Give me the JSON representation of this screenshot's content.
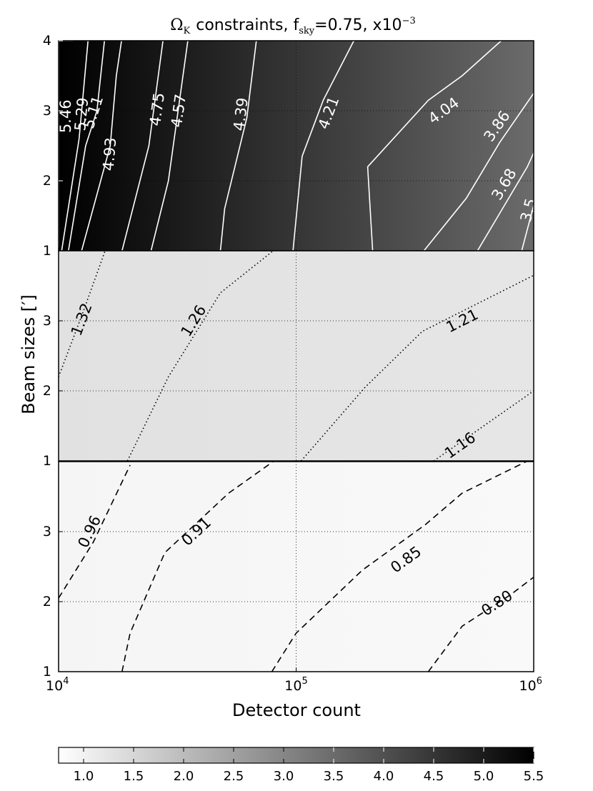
{
  "chart_data": {
    "type": "contour",
    "title": {
      "symbol": "Ω",
      "symbol_sub": "K",
      "mid": "constraints, f",
      "f_sub": "sky",
      "value": "=0.75, x10",
      "exp": "−3"
    },
    "xlabel": "Detector count",
    "ylabel": "Beam sizes [′]",
    "x_scale": "log",
    "xlim": [
      10000,
      1000000
    ],
    "x_ticks": [
      {
        "value": 10000,
        "base": "10",
        "exp": "4"
      },
      {
        "value": 100000,
        "base": "10",
        "exp": "5"
      },
      {
        "value": 1000000,
        "base": "10",
        "exp": "6"
      }
    ],
    "ylim": [
      1,
      4
    ],
    "y_ticks": [
      {
        "value": 1,
        "label": "1"
      },
      {
        "value": 2,
        "label": "2"
      },
      {
        "value": 3,
        "label": "3"
      },
      {
        "value": 4,
        "label": "4"
      }
    ],
    "grid": true,
    "panels": [
      {
        "name": "panel-1",
        "line_style": "solid",
        "line_color": "#ffffff",
        "label_color": "#ffffff",
        "show_y4": true,
        "background": {
          "left_value": 5.55,
          "right_value": 3.5
        },
        "contours": [
          {
            "label": "5.46",
            "points": [
              [
                10000,
                1.05
              ],
              [
                10000,
                4.0
              ],
              [
                11500,
                4.0
              ]
            ],
            "label_at": [
              10700,
              2.92
            ]
          },
          {
            "label": "5.29",
            "points": [
              [
                10300,
                1.0
              ],
              [
                12200,
                2.6
              ],
              [
                13300,
                4.0
              ]
            ],
            "label_at": [
              12500,
              2.95
            ]
          },
          {
            "label": "5.11",
            "points": [
              [
                11000,
                1.0
              ],
              [
                13000,
                2.5
              ],
              [
                14500,
                3.0
              ],
              [
                15600,
                4.0
              ]
            ],
            "label_at": [
              14000,
              2.98
            ]
          },
          {
            "label": "4.93",
            "points": [
              [
                12500,
                1.0
              ],
              [
                16500,
                2.5
              ],
              [
                17500,
                3.5
              ],
              [
                18400,
                4.0
              ]
            ],
            "label_at": [
              16400,
              2.38
            ]
          },
          {
            "label": "4.75",
            "points": [
              [
                18500,
                1.0
              ],
              [
                24000,
                2.5
              ],
              [
                27500,
                4.0
              ]
            ],
            "label_at": [
              26000,
              3.02
            ]
          },
          {
            "label": "4.57",
            "points": [
              [
                24500,
                1.0
              ],
              [
                29000,
                2.0
              ],
              [
                35000,
                4.0
              ]
            ],
            "label_at": [
              32000,
              3.0
            ]
          },
          {
            "label": "4.39",
            "points": [
              [
                48000,
                1.0
              ],
              [
                50000,
                1.6
              ],
              [
                62000,
                2.9
              ],
              [
                68000,
                4.0
              ]
            ],
            "label_at": [
              58500,
              2.95
            ]
          },
          {
            "label": "4.21",
            "points": [
              [
                97000,
                1.0
              ],
              [
                106000,
                2.35
              ],
              [
                130000,
                3.15
              ],
              [
                175000,
                4.0
              ]
            ],
            "label_at": [
              137000,
              2.97
            ]
          },
          {
            "label": "4.04",
            "points": [
              [
                210000,
                1.0
              ],
              [
                200000,
                2.2
              ],
              [
                360000,
                3.15
              ],
              [
                500000,
                3.5
              ],
              [
                730000,
                4.0
              ]
            ],
            "label_at": [
              418000,
              3.0
            ]
          },
          {
            "label": "3.86",
            "points": [
              [
                345000,
                1.0
              ],
              [
                520000,
                1.75
              ],
              [
                720000,
                2.55
              ],
              [
                1000000,
                3.25
              ]
            ],
            "label_at": [
              700000,
              2.78
            ]
          },
          {
            "label": "3.68",
            "points": [
              [
                580000,
                1.0
              ],
              [
                940000,
                2.2
              ],
              [
                1000000,
                2.4
              ]
            ],
            "label_at": [
              750000,
              1.95
            ]
          },
          {
            "label": "3.5",
            "points": [
              [
                890000,
                1.0
              ],
              [
                1000000,
                1.65
              ]
            ],
            "label_at": [
              950000,
              1.58
            ]
          }
        ]
      },
      {
        "name": "panel-2",
        "line_style": "dotted",
        "line_color": "#000000",
        "label_color": "#000000",
        "show_y4": false,
        "background": {
          "left_value": 1.3,
          "right_value": 1.22
        },
        "contours": [
          {
            "label": "1.32",
            "points": [
              [
                10000,
                2.2
              ],
              [
                12600,
                3.1
              ],
              [
                15700,
                4.0
              ]
            ],
            "label_at": [
              12500,
              3.02
            ]
          },
          {
            "label": "1.26",
            "points": [
              [
                19500,
                1.0
              ],
              [
                29000,
                2.2
              ],
              [
                48000,
                3.4
              ],
              [
                80000,
                4.0
              ]
            ],
            "label_at": [
              37000,
              3.0
            ]
          },
          {
            "label": "1.21",
            "points": [
              [
                105000,
                1.0
              ],
              [
                195000,
                2.05
              ],
              [
                340000,
                2.85
              ],
              [
                1000000,
                3.65
              ]
            ],
            "label_at": [
              500000,
              3.0
            ]
          },
          {
            "label": "1.16",
            "points": [
              [
                380000,
                1.0
              ],
              [
                1000000,
                2.0
              ]
            ],
            "label_at": [
              490000,
              1.22
            ]
          }
        ]
      },
      {
        "name": "panel-3",
        "line_style": "dashed",
        "line_color": "#000000",
        "label_color": "#000000",
        "show_y4": false,
        "background": {
          "left_value": 0.94,
          "right_value": 0.86
        },
        "contours": [
          {
            "label": "0.96",
            "points": [
              [
                10000,
                2.05
              ],
              [
                14000,
                2.85
              ],
              [
                20000,
                3.95
              ]
            ],
            "label_at": [
              13500,
              3.0
            ]
          },
          {
            "label": "0.91",
            "points": [
              [
                18500,
                1.0
              ],
              [
                20000,
                1.55
              ],
              [
                28000,
                2.7
              ],
              [
                52000,
                3.55
              ],
              [
                80000,
                4.0
              ]
            ],
            "label_at": [
              38000,
              3.0
            ]
          },
          {
            "label": "0.85",
            "points": [
              [
                79000,
                1.0
              ],
              [
                100000,
                1.55
              ],
              [
                190000,
                2.45
              ],
              [
                350000,
                3.1
              ],
              [
                500000,
                3.55
              ],
              [
                930000,
                4.0
              ]
            ],
            "label_at": [
              290000,
              2.6
            ]
          },
          {
            "label": "0.80",
            "points": [
              [
                360000,
                1.0
              ],
              [
                500000,
                1.65
              ],
              [
                800000,
                2.1
              ],
              [
                1000000,
                2.35
              ]
            ],
            "label_at": [
              700000,
              1.98
            ]
          }
        ]
      }
    ],
    "colorbar": {
      "orientation": "horizontal",
      "min": 0.75,
      "max": 5.5,
      "colormap": "gray_r",
      "ticks": [
        {
          "value": 1.0,
          "label": "1.0"
        },
        {
          "value": 1.5,
          "label": "1.5"
        },
        {
          "value": 2.0,
          "label": "2.0"
        },
        {
          "value": 2.5,
          "label": "2.5"
        },
        {
          "value": 3.0,
          "label": "3.0"
        },
        {
          "value": 3.5,
          "label": "3.5"
        },
        {
          "value": 4.0,
          "label": "4.0"
        },
        {
          "value": 4.5,
          "label": "4.5"
        },
        {
          "value": 5.0,
          "label": "5.0"
        },
        {
          "value": 5.5,
          "label": "5.5"
        }
      ]
    }
  }
}
